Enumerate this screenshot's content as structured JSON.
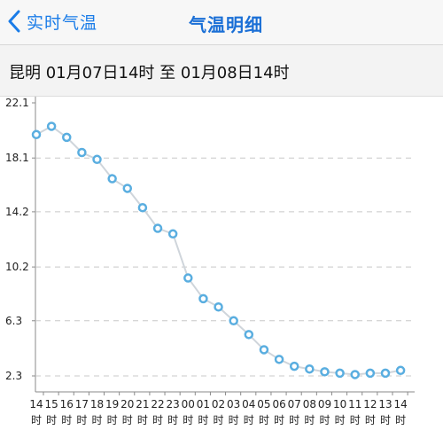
{
  "header": {
    "back_label": "实时气温",
    "title": "气温明细"
  },
  "range_text": "昆明 01月07日14时 至 01月08日14时",
  "icons": {
    "back": "chevron-left-icon"
  },
  "colors": {
    "accent": "#1a7ce8",
    "line": "#cfd5db",
    "marker": "#5aaee0"
  },
  "chart_data": {
    "type": "line",
    "title": "",
    "xlabel": "",
    "ylabel": "",
    "ylim": [
      2.3,
      22.1
    ],
    "yticks": [
      "22.1",
      "18.1",
      "14.2",
      "10.2",
      "6.3",
      "2.3"
    ],
    "ytick_values": [
      22.1,
      18.1,
      14.2,
      10.2,
      6.3,
      2.3
    ],
    "grid": true,
    "categories": [
      "14",
      "15",
      "16",
      "17",
      "18",
      "19",
      "20",
      "21",
      "22",
      "23",
      "00",
      "01",
      "02",
      "03",
      "04",
      "05",
      "06",
      "07",
      "08",
      "09",
      "10",
      "11",
      "12",
      "13",
      "14"
    ],
    "category_suffix": "时",
    "series": [
      {
        "name": "",
        "values": [
          19.8,
          20.4,
          19.6,
          18.5,
          18.0,
          16.6,
          15.9,
          14.5,
          13.0,
          12.6,
          9.4,
          7.9,
          7.3,
          6.3,
          5.3,
          4.2,
          3.5,
          3.0,
          2.8,
          2.6,
          2.5,
          2.4,
          2.5,
          2.5,
          2.7
        ]
      }
    ]
  }
}
